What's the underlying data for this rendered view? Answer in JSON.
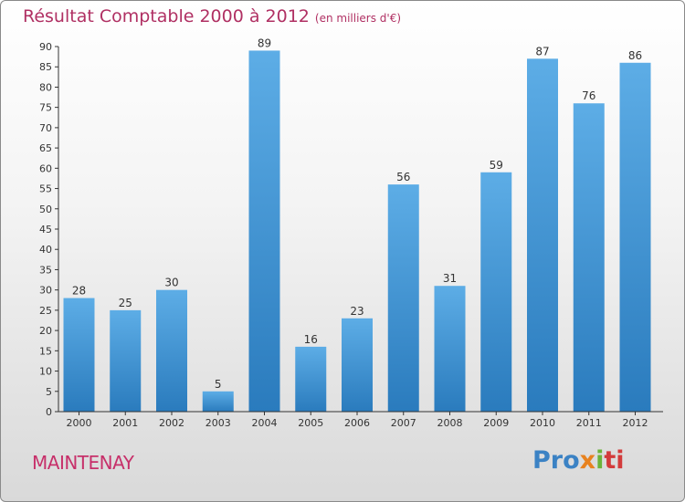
{
  "header": {
    "title": "Résultat Comptable 2000 à 2012",
    "subtitle": "(en milliers d'€)"
  },
  "footer": {
    "town": "MAINTENAY",
    "brand": [
      "Pro",
      "x",
      "i",
      "ti"
    ]
  },
  "colors": {
    "title": "#b03063",
    "bar_light": "#5dade6",
    "bar_dark": "#2a7bbd",
    "axis": "#333333"
  },
  "chart_data": {
    "type": "bar",
    "title": "Résultat Comptable 2000 à 2012",
    "subtitle": "(en milliers d'€)",
    "xlabel": "",
    "ylabel": "",
    "categories": [
      "2000",
      "2001",
      "2002",
      "2003",
      "2004",
      "2005",
      "2006",
      "2007",
      "2008",
      "2009",
      "2010",
      "2011",
      "2012"
    ],
    "values": [
      28,
      25,
      30,
      5,
      89,
      16,
      23,
      56,
      31,
      59,
      87,
      76,
      86
    ],
    "ylim": [
      0,
      90
    ],
    "yticks": [
      0,
      5,
      10,
      15,
      20,
      25,
      30,
      35,
      40,
      45,
      50,
      55,
      60,
      65,
      70,
      75,
      80,
      85,
      90
    ],
    "grid": false,
    "data_labels": true
  }
}
